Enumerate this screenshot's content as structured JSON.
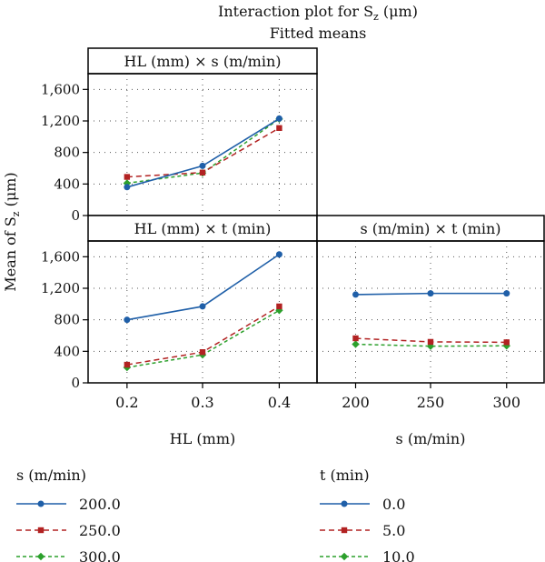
{
  "title": {
    "line1_prefix": "Interaction plot for S",
    "line1_sub": "z",
    "line1_suffix": " (μm)",
    "line2": "Fitted means"
  },
  "ylabel": {
    "prefix": "Mean of S",
    "sub": "z",
    "suffix": " (μm)"
  },
  "colors": {
    "level1": "#1f5fa8",
    "level2": "#b22222",
    "level3": "#2ca02c",
    "strip_bg": "#ffffff",
    "frame": "#000000"
  },
  "chart_data": [
    {
      "type": "line",
      "panel": "HL-by-s",
      "strip": "HL (mm) × s (m/min)",
      "categories": [
        "0.2",
        "0.3",
        "0.4"
      ],
      "ylim": [
        0,
        1800
      ],
      "yticks": [
        "0",
        "400",
        "800",
        "1,200",
        "1,600"
      ],
      "grid": true,
      "series": [
        {
          "name": "200.0",
          "values": [
            360,
            630,
            1230
          ]
        },
        {
          "name": "250.0",
          "values": [
            490,
            545,
            1110
          ]
        },
        {
          "name": "300.0",
          "values": [
            410,
            540,
            1225
          ]
        }
      ]
    },
    {
      "type": "line",
      "panel": "HL-by-t",
      "strip": "HL (mm) × t (min)",
      "categories": [
        "0.2",
        "0.3",
        "0.4"
      ],
      "ylim": [
        0,
        1800
      ],
      "yticks": [
        "0",
        "400",
        "800",
        "1,200",
        "1,600"
      ],
      "xlabel": "HL (mm)",
      "grid": true,
      "series": [
        {
          "name": "0.0",
          "values": [
            800,
            970,
            1630
          ]
        },
        {
          "name": "5.0",
          "values": [
            230,
            390,
            970
          ]
        },
        {
          "name": "10.0",
          "values": [
            195,
            355,
            920
          ]
        }
      ]
    },
    {
      "type": "line",
      "panel": "s-by-t",
      "strip": "s (m/min) × t (min)",
      "categories": [
        "200",
        "250",
        "300"
      ],
      "ylim": [
        0,
        1800
      ],
      "xlabel": "s (m/min)",
      "grid": true,
      "series": [
        {
          "name": "0.0",
          "values": [
            1120,
            1135,
            1135
          ]
        },
        {
          "name": "5.0",
          "values": [
            565,
            520,
            515
          ]
        },
        {
          "name": "10.0",
          "values": [
            490,
            465,
            470
          ]
        }
      ]
    }
  ],
  "legends": [
    {
      "title": "s (m/min)",
      "entries": [
        "200.0",
        "250.0",
        "300.0"
      ]
    },
    {
      "title": "t (min)",
      "entries": [
        "0.0",
        "5.0",
        "10.0"
      ]
    }
  ]
}
